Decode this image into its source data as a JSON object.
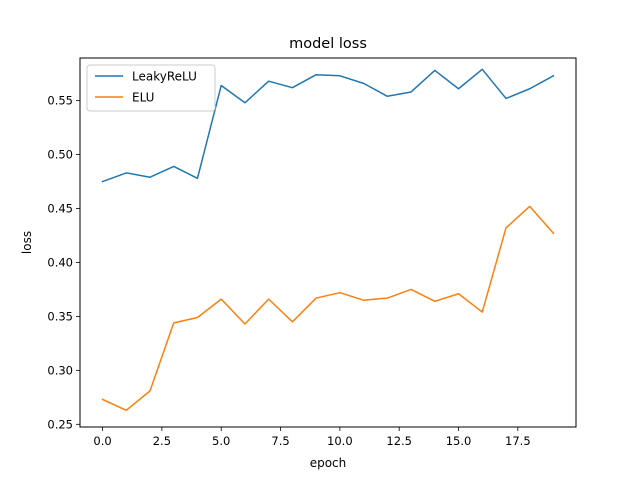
{
  "chart_data": {
    "type": "line",
    "title": "model loss",
    "xlabel": "epoch",
    "ylabel": "loss",
    "x": [
      0,
      1,
      2,
      3,
      4,
      5,
      6,
      7,
      8,
      9,
      10,
      11,
      12,
      13,
      14,
      15,
      16,
      17,
      18,
      19
    ],
    "series": [
      {
        "name": "LeakyReLU",
        "color": "#1f77b4",
        "values": [
          0.475,
          0.483,
          0.479,
          0.489,
          0.478,
          0.564,
          0.548,
          0.568,
          0.562,
          0.574,
          0.573,
          0.566,
          0.554,
          0.558,
          0.578,
          0.561,
          0.579,
          0.552,
          0.561,
          0.573
        ]
      },
      {
        "name": "ELU",
        "color": "#ff7f0e",
        "values": [
          0.273,
          0.263,
          0.281,
          0.344,
          0.349,
          0.366,
          0.343,
          0.366,
          0.345,
          0.367,
          0.372,
          0.365,
          0.367,
          0.375,
          0.364,
          0.371,
          0.354,
          0.432,
          0.452,
          0.427
        ]
      }
    ],
    "xlim": [
      -0.95,
      19.95
    ],
    "ylim": [
      0.2475,
      0.5895
    ],
    "xticks": [
      0.0,
      2.5,
      5.0,
      7.5,
      10.0,
      12.5,
      15.0,
      17.5
    ],
    "xtick_labels": [
      "0.0",
      "2.5",
      "5.0",
      "7.5",
      "10.0",
      "12.5",
      "15.0",
      "17.5"
    ],
    "yticks": [
      0.25,
      0.3,
      0.35,
      0.4,
      0.45,
      0.5,
      0.55
    ],
    "ytick_labels": [
      "0.25",
      "0.30",
      "0.35",
      "0.40",
      "0.45",
      "0.50",
      "0.55"
    ],
    "grid": false,
    "legend_position": "top-left"
  }
}
